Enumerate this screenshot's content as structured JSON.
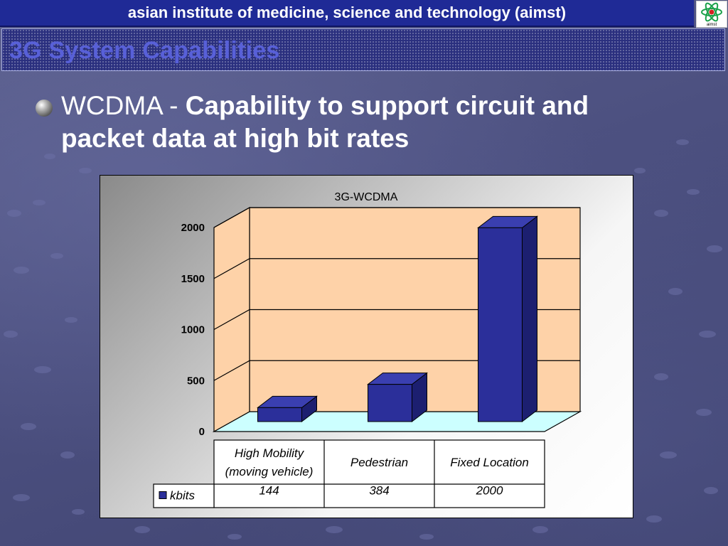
{
  "header": {
    "text": "asian institute of medicine, science and technology (aimst)"
  },
  "logo": {
    "icon": "aimst-atom-logo-icon",
    "text": "aimst"
  },
  "title": {
    "text": "3G System Capabilities"
  },
  "bullet": {
    "lead": "WCDMA - ",
    "strong": "Capability to support circuit and packet data at high bit rates"
  },
  "chart_data": {
    "type": "bar",
    "title": "3G-WCDMA",
    "categories": [
      "High Mobility (moving vehicle)",
      "Pedestrian",
      "Fixed Location"
    ],
    "category_lines": [
      [
        "High Mobility",
        "(moving vehicle)"
      ],
      [
        "Pedestrian"
      ],
      [
        "Fixed Location"
      ]
    ],
    "series": [
      {
        "name": "kbits",
        "values": [
          144,
          384,
          2000
        ],
        "color": "#2b2f9a"
      }
    ],
    "value_labels": [
      "144",
      "384",
      "2000"
    ],
    "yticks": [
      0,
      500,
      1000,
      1500,
      2000
    ],
    "ylim": [
      0,
      2000
    ],
    "grid": true,
    "legend": "data-table-left",
    "colors": {
      "wall": "#fed2a8",
      "floor": "#ccffff",
      "bar_side": "#1c1f70",
      "bar_top": "#3a3fb0"
    }
  }
}
